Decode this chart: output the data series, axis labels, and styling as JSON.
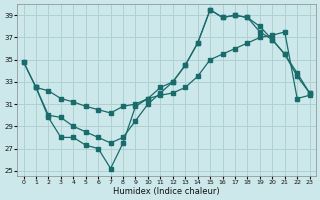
{
  "xlabel": "Humidex (Indice chaleur)",
  "bg_color": "#cce8ea",
  "grid_color": "#b0d0d4",
  "line_color": "#1a6b6b",
  "xlim": [
    -0.5,
    23.5
  ],
  "ylim": [
    24.5,
    40.0
  ],
  "yticks": [
    25,
    27,
    29,
    31,
    33,
    35,
    37,
    39
  ],
  "xticks": [
    0,
    1,
    2,
    3,
    4,
    5,
    6,
    7,
    8,
    9,
    10,
    11,
    12,
    13,
    14,
    15,
    16,
    17,
    18,
    19,
    20,
    21,
    22,
    23
  ],
  "line1_x": [
    0,
    1,
    2,
    3,
    4,
    5,
    6,
    7,
    8,
    9,
    10,
    11,
    12,
    13,
    14,
    15,
    16,
    17,
    18,
    19,
    20,
    21,
    22,
    23
  ],
  "line1_y": [
    34.8,
    32.5,
    32.2,
    31.5,
    31.2,
    30.8,
    30.5,
    30.2,
    30.8,
    31.0,
    31.5,
    31.8,
    32.0,
    32.5,
    33.5,
    35.0,
    35.5,
    36.0,
    36.5,
    37.0,
    37.2,
    37.5,
    31.5,
    31.8
  ],
  "line2_x": [
    0,
    1,
    2,
    3,
    4,
    5,
    6,
    7,
    8,
    9,
    10,
    11,
    12,
    13,
    14,
    15,
    16,
    17,
    18,
    19,
    20,
    21,
    22,
    23
  ],
  "line2_y": [
    34.8,
    32.5,
    30.0,
    29.8,
    29.0,
    28.5,
    28.0,
    27.5,
    28.0,
    29.5,
    31.0,
    32.0,
    33.0,
    34.5,
    36.5,
    39.5,
    38.8,
    39.0,
    38.8,
    38.0,
    36.8,
    35.5,
    33.5,
    32.0
  ],
  "line3_x": [
    1,
    2,
    3,
    4,
    5,
    6,
    7,
    8,
    9,
    10,
    11,
    12,
    13,
    14,
    15,
    16,
    17,
    18,
    19,
    20,
    21,
    22,
    23
  ],
  "line3_y": [
    32.5,
    29.8,
    28.0,
    28.0,
    27.3,
    27.0,
    25.2,
    27.5,
    30.8,
    31.5,
    32.5,
    33.0,
    34.5,
    36.5,
    39.5,
    38.8,
    39.0,
    38.8,
    37.5,
    36.8,
    35.5,
    33.8,
    32.0
  ]
}
